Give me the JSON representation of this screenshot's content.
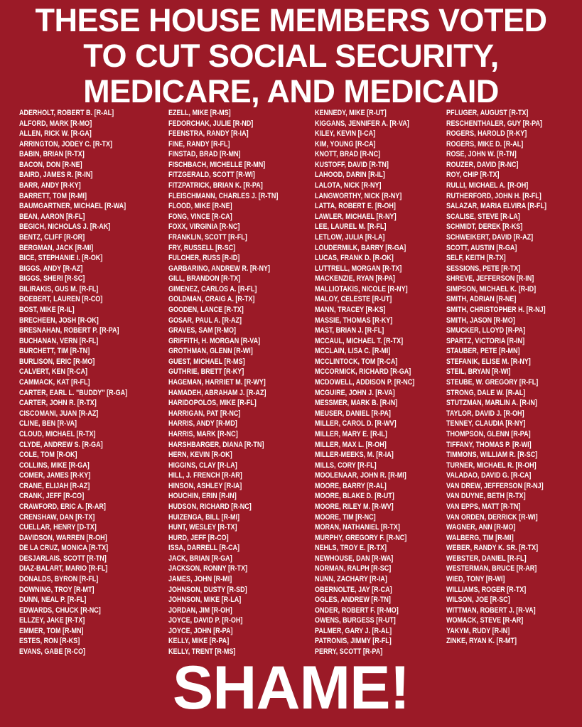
{
  "header": {
    "title_lines": [
      "THESE HOUSE MEMBERS VOTED",
      "TO CUT SOCIAL SECURITY,",
      "MEDICARE, AND MEDICAID"
    ]
  },
  "columns": [
    [
      "ADERHOLT, ROBERT B. [R-AL]",
      "ALFORD, MARK [R-MO]",
      "ALLEN, RICK W. [R-GA]",
      "ARRINGTON, JODEY C. [R-TX]",
      "BABIN, BRIAN [R-TX]",
      "BACON, DON [R-NE]",
      "BAIRD, JAMES R. [R-IN]",
      "BARR, ANDY [R-KY]",
      "BARRETT, TOM [R-MI]",
      "BAUMGARTNER, MICHAEL [R-WA]",
      "BEAN, AARON [R-FL]",
      "BEGICH, NICHOLAS J. [R-AK]",
      "BENTZ, CLIFF [R-OR]",
      "BERGMAN, JACK [R-MI]",
      "BICE, STEPHANIE I. [R-OK]",
      "BIGGS, ANDY [R-AZ]",
      "BIGGS, SHERI [R-SC]",
      "BILIRAKIS, GUS M. [R-FL]",
      "BOEBERT, LAUREN [R-CO]",
      "BOST, MIKE [R-IL]",
      "BRECHEEN, JOSH [R-OK]",
      "BRESNAHAN, ROBERT P. [R-PA]",
      "BUCHANAN, VERN [R-FL]",
      "BURCHETT, TIM [R-TN]",
      "BURLISON, ERIC [R-MO]",
      "CALVERT, KEN [R-CA]",
      "CAMMACK, KAT [R-FL]",
      "CARTER, EARL L. \"BUDDY\" [R-GA]",
      "CARTER, JOHN R. [R-TX]",
      "CISCOMANI, JUAN [R-AZ]",
      "CLINE, BEN [R-VA]",
      "CLOUD, MICHAEL [R-TX]",
      "CLYDE, ANDREW S. [R-GA]",
      "COLE, TOM [R-OK]",
      "COLLINS, MIKE [R-GA]",
      "COMER, JAMES [R-KY]",
      "CRANE, ELIJAH [R-AZ]",
      "CRANK, JEFF [R-CO]",
      "CRAWFORD, ERIC A.  [R-AR]",
      "CRENSHAW, DAN [R-TX]",
      "CUELLAR, HENRY [D-TX]",
      "DAVIDSON, WARREN [R-OH]",
      "DE LA CRUZ, MONICA [R-TX]",
      "DESJARLAIS, SCOTT [R-TN]",
      "DIAZ-BALART, MARIO [R-FL]",
      "DONALDS, BYRON [R-FL]",
      "DOWNING, TROY [R-MT]",
      "DUNN, NEAL P. [R-FL]",
      "EDWARDS, CHUCK [R-NC]",
      "ELLZEY, JAKE [R-TX]",
      "EMMER, TOM [R-MN]",
      "ESTES, RON [R-KS]",
      "EVANS, GABE [R-CO]"
    ],
    [
      "EZELL, MIKE [R-MS]",
      "FEDORCHAK, JULIE [R-ND]",
      "FEENSTRA, RANDY [R-IA]",
      "FINE, RANDY [R-FL]",
      "FINSTAD, BRAD [R-MN]",
      "FISCHBACH, MICHELLE [R-MN]",
      "FITZGERALD, SCOTT [R-WI]",
      "FITZPATRICK, BRIAN K. [R-PA]",
      "FLEISCHMANN, CHARLES J. [R-TN]",
      "FLOOD, MIKE [R-NE]",
      "FONG, VINCE [R-CA]",
      "FOXX, VIRGINIA [R-NC]",
      "FRANKLIN, SCOTT [R-FL]",
      "FRY, RUSSELL [R-SC]",
      "FULCHER, RUSS [R-ID]",
      "GARBARINO, ANDREW R. [R-NY]",
      "GILL, BRANDON [R-TX]",
      "GIMENEZ, CARLOS A. [R-FL]",
      "GOLDMAN, CRAIG A. [R-TX]",
      "GOODEN, LANCE [R-TX]",
      "GOSAR, PAUL A. [R-AZ]",
      "GRAVES, SAM [R-MO]",
      "GRIFFITH, H. MORGAN [R-VA]",
      "GROTHMAN, GLENN [R-WI]",
      "GUEST, MICHAEL [R-MS]",
      "GUTHRIE, BRETT [R-KY]",
      "HAGEMAN, HARRIET M. [R-WY]",
      "HAMADEH, ABRAHAM J. [R-AZ]",
      "HARIDOPOLOS, MIKE [R-FL]",
      "HARRIGAN, PAT [R-NC]",
      "HARRIS, ANDY [R-MD]",
      "HARRIS, MARK [R-NC]",
      "HARSHBARGER, DIANA [R-TN]",
      "HERN, KEVIN [R-OK]",
      "HIGGINS, CLAY [R-LA]",
      "HILL, J. FRENCH [R-AR]",
      "HINSON, ASHLEY [R-IA]",
      "HOUCHIN, ERIN [R-IN]",
      "HUDSON, RICHARD [R-NC]",
      "HUIZENGA, BILL [R-MI]",
      "HUNT, WESLEY [R-TX]",
      "HURD, JEFF [R-CO]",
      "ISSA, DARRELL [R-CA]",
      "JACK, BRIAN [R-GA]",
      "JACKSON, RONNY [R-TX]",
      "JAMES, JOHN [R-MI]",
      "JOHNSON, DUSTY [R-SD]",
      "JOHNSON, MIKE [R-LA]",
      "JORDAN, JIM [R-OH]",
      "JOYCE, DAVID P. [R-OH]",
      "JOYCE, JOHN [R-PA]",
      "KELLY, MIKE [R-PA]",
      "KELLY, TRENT [R-MS]"
    ],
    [
      "KENNEDY, MIKE [R-UT]",
      "KIGGANS, JENNIFER A. [R-VA]",
      "KILEY, KEVIN [I-CA]",
      "KIM, YOUNG [R-CA]",
      "KNOTT, BRAD [R-NC]",
      "KUSTOFF, DAVID [R-TN]",
      "LAHOOD, DARIN [R-IL]",
      "LALOTA, NICK [R-NY]",
      "LANGWORTHY, NICK [R-NY]",
      "LATTA, ROBERT E. [R-OH]",
      "LAWLER, MICHAEL [R-NY]",
      "LEE, LAUREL M. [R-FL]",
      "LETLOW, JULIA [R-LA]",
      "LOUDERMILK, BARRY [R-GA]",
      "LUCAS, FRANK D. [R-OK]",
      "LUTTRELL, MORGAN [R-TX]",
      "MACKENZIE, RYAN [R-PA]",
      "MALLIOTAKIS, NICOLE [R-NY]",
      "MALOY, CELESTE [R-UT]",
      "MANN, TRACEY [R-KS]",
      "MASSIE, THOMAS [R-KY]",
      "MAST, BRIAN J. [R-FL]",
      "MCCAUL, MICHAEL T. [R-TX]",
      "MCCLAIN, LISA C. [R-MI]",
      "MCCLINTOCK, TOM [R-CA]",
      "MCCORMICK, RICHARD [R-GA]",
      "MCDOWELL, ADDISON P. [R-NC]",
      "MCGUIRE, JOHN J. [R-VA]",
      "MESSMER, MARK B. [R-IN]",
      "MEUSER, DANIEL [R-PA]",
      "MILLER, CAROL D. [R-WV]",
      "MILLER, MARY E. [R-IL]",
      "MILLER, MAX L. [R-OH]",
      "MILLER-MEEKS, M. [R-IA]",
      "MILLS, CORY [R-FL]",
      "MOOLENAAR, JOHN R. [R-MI]",
      "MOORE, BARRY [R-AL]",
      "MOORE, BLAKE D. [R-UT]",
      "MOORE, RILEY M. [R-WV]",
      "MOORE, TIM [R-NC]",
      "MORAN, NATHANIEL [R-TX]",
      "MURPHY, GREGORY F. [R-NC]",
      "NEHLS, TROY E. [R-TX]",
      "NEWHOUSE, DAN [R-WA]",
      "NORMAN, RALPH [R-SC]",
      "NUNN, ZACHARY [R-IA]",
      "OBERNOLTE, JAY [R-CA]",
      "OGLES, ANDREW [R-TN]",
      "ONDER, ROBERT F. [R-MO]",
      "OWENS, BURGESS [R-UT]",
      "PALMER, GARY J. [R-AL]",
      "PATRONIS, JIMMY [R-FL]",
      "PERRY, SCOTT [R-PA]"
    ],
    [
      "PFLUGER, AUGUST [R-TX]",
      "RESCHENTHALER, GUY [R-PA]",
      "ROGERS, HAROLD [R-KY]",
      "ROGERS, MIKE D. [R-AL]",
      "ROSE, JOHN W. [R-TN]",
      "ROUZER, DAVID [R-NC]",
      "ROY, CHIP [R-TX]",
      "RULLI, MICHAEL A. [R-OH]",
      "RUTHERFORD, JOHN H. [R-FL]",
      "SALAZAR, MARIA ELVIRA [R-FL]",
      "SCALISE, STEVE [R-LA]",
      "SCHMIDT, DEREK [R-KS]",
      "SCHWEIKERT, DAVID [R-AZ]",
      "SCOTT, AUSTIN [R-GA]",
      "SELF, KEITH [R-TX]",
      "SESSIONS, PETE [R-TX]",
      "SHREVE, JEFFERSON [R-IN]",
      "SIMPSON, MICHAEL K. [R-ID]",
      "SMITH, ADRIAN [R-NE]",
      "SMITH, CHRISTOPHER H. [R-NJ]",
      "SMITH, JASON [R-MO]",
      "SMUCKER, LLOYD [R-PA]",
      "SPARTZ, VICTORIA [R-IN]",
      "STAUBER, PETE [R-MN]",
      "STEFANIK, ELISE M. [R-NY]",
      "STEIL, BRYAN [R-WI]",
      "STEUBE, W. GREGORY [R-FL]",
      "STRONG, DALE W. [R-AL]",
      "STUTZMAN, MARLIN A. [R-IN]",
      "TAYLOR, DAVID J. [R-OH]",
      "TENNEY, CLAUDIA [R-NY]",
      "THOMPSON, GLENN [R-PA]",
      "TIFFANY, THOMAS P. [R-WI]",
      "TIMMONS, WILLIAM R. [R-SC]",
      "TURNER, MICHAEL R. [R-OH]",
      "VALADAO, DAVID G. [R-CA]",
      "VAN DREW, JEFFERSON [R-NJ]",
      "VAN DUYNE, BETH [R-TX]",
      "VAN EPPS, MATT [R-TN]",
      "VAN ORDEN, DERRICK [R-WI]",
      "WAGNER, ANN [R-MO]",
      "WALBERG, TIM [R-MI]",
      "WEBER, RANDY K. SR. [R-TX]",
      "WEBSTER, DANIEL [R-FL]",
      "WESTERMAN, BRUCE [R-AR]",
      "WIED, TONY [R-WI]",
      "WILLIAMS, ROGER [R-TX]",
      "WILSON, JOE [R-SC]",
      "WITTMAN, ROBERT J. [R-VA]",
      "WOMACK, STEVE [R-AR]",
      "YAKYM, RUDY [R-IN]",
      "ZINKE, RYAN K. [R-MT]"
    ]
  ],
  "footer": {
    "text": "SHAME!"
  }
}
